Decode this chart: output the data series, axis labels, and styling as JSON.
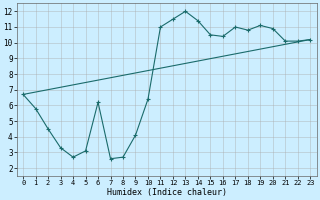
{
  "title": "",
  "xlabel": "Humidex (Indice chaleur)",
  "background_color": "#cceeff",
  "grid_color": "#aaaaaa",
  "line_color": "#1a6b6b",
  "xlim_min": -0.5,
  "xlim_max": 23.5,
  "ylim_min": 1.5,
  "ylim_max": 12.5,
  "xticks": [
    0,
    1,
    2,
    3,
    4,
    5,
    6,
    7,
    8,
    9,
    10,
    11,
    12,
    13,
    14,
    15,
    16,
    17,
    18,
    19,
    20,
    21,
    22,
    23
  ],
  "yticks": [
    2,
    3,
    4,
    5,
    6,
    7,
    8,
    9,
    10,
    11,
    12
  ],
  "line1_x": [
    0,
    1,
    2,
    3,
    4,
    5,
    6,
    7,
    8,
    9,
    10,
    11,
    12,
    13,
    14,
    15,
    16,
    17,
    18,
    19,
    20,
    21,
    22,
    23
  ],
  "line1_y": [
    6.7,
    5.8,
    4.5,
    3.3,
    2.7,
    3.1,
    6.2,
    2.6,
    2.7,
    4.1,
    6.4,
    11.0,
    11.5,
    12.0,
    11.4,
    10.5,
    10.4,
    11.0,
    10.8,
    11.1,
    10.9,
    10.1,
    10.1,
    10.2
  ],
  "line2_x": [
    0,
    23
  ],
  "line2_y": [
    6.7,
    10.2
  ],
  "marker": "+",
  "xlabel_fontsize": 6,
  "tick_fontsize": 5,
  "linewidth": 0.8,
  "markersize": 3.5
}
